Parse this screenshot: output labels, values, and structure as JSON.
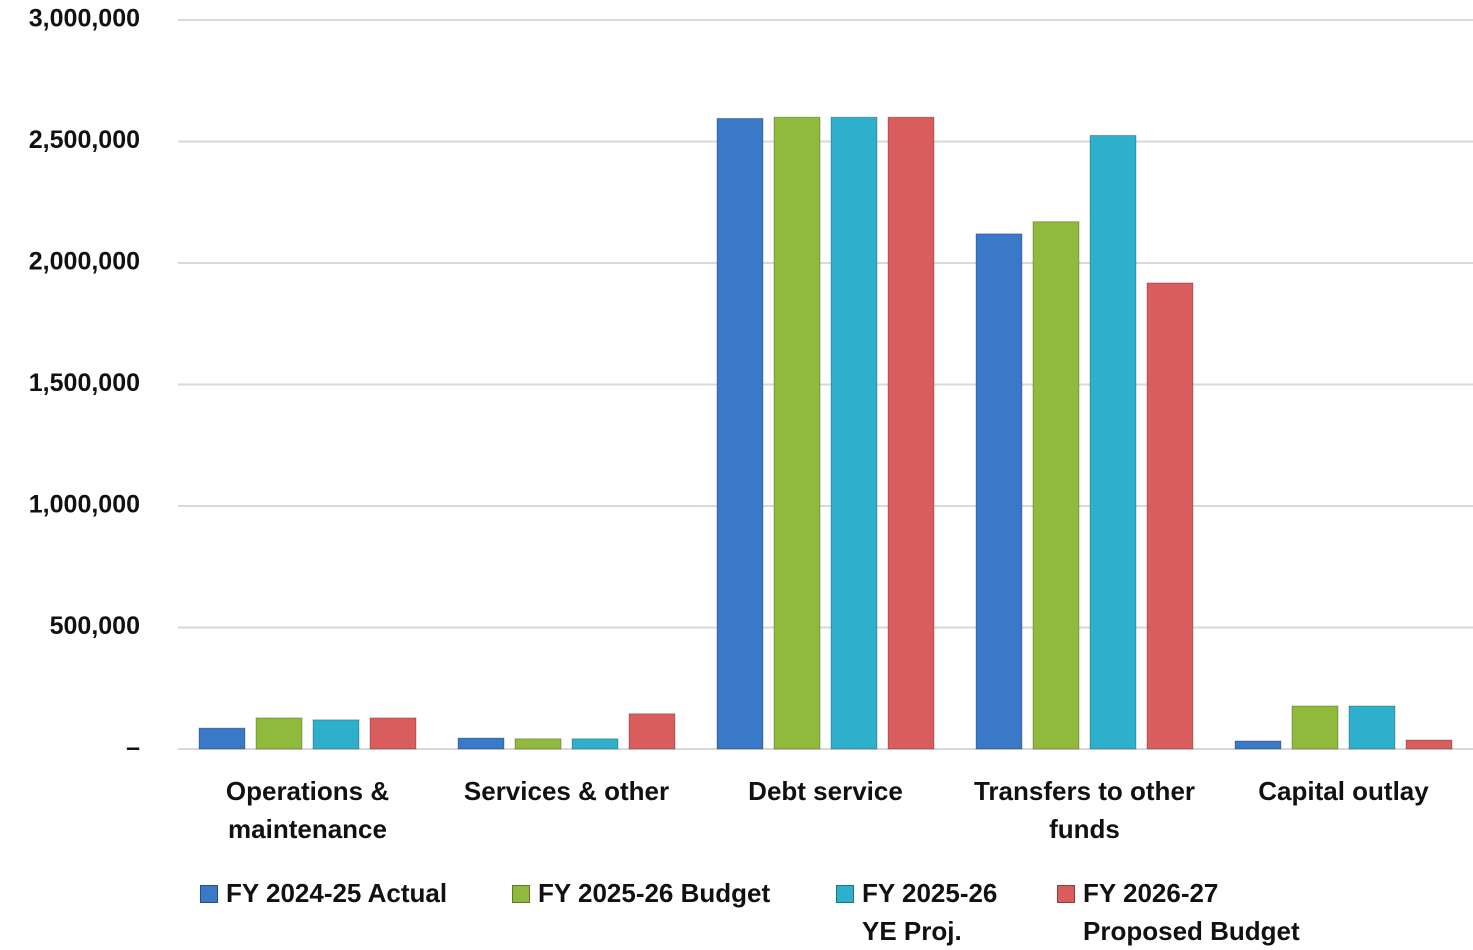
{
  "chart_data": {
    "type": "bar",
    "categories": [
      "Operations & maintenance",
      "Services & other",
      "Debt service",
      "Transfers to other funds",
      "Capital outlay"
    ],
    "series": [
      {
        "name": "FY 2024-25 Actual",
        "color": "#3a78c8",
        "values": [
          86000,
          45000,
          2595000,
          2120000,
          33000
        ]
      },
      {
        "name": "FY 2025-26 Budget",
        "color": "#8fba3c",
        "values": [
          128000,
          42000,
          2600000,
          2170000,
          177000
        ]
      },
      {
        "name": "FY 2025-26 YE Proj.",
        "color": "#2eb0cc",
        "values": [
          120000,
          42000,
          2600000,
          2525000,
          177000
        ]
      },
      {
        "name": "FY 2026-27 Proposed Budget",
        "color": "#d95d5d",
        "values": [
          128000,
          145000,
          2600000,
          1918000,
          37000
        ]
      }
    ],
    "ylim": [
      0,
      3000000
    ],
    "yticks": [
      {
        "value": 0,
        "label": "–"
      },
      {
        "value": 500000,
        "label": "500,000"
      },
      {
        "value": 1000000,
        "label": "1,000,000"
      },
      {
        "value": 1500000,
        "label": "1,500,000"
      },
      {
        "value": 2000000,
        "label": "2,000,000"
      },
      {
        "value": 2500000,
        "label": "2,500,000"
      },
      {
        "value": 3000000,
        "label": "3,000,000"
      }
    ],
    "grid": true,
    "legend": "bottom"
  }
}
